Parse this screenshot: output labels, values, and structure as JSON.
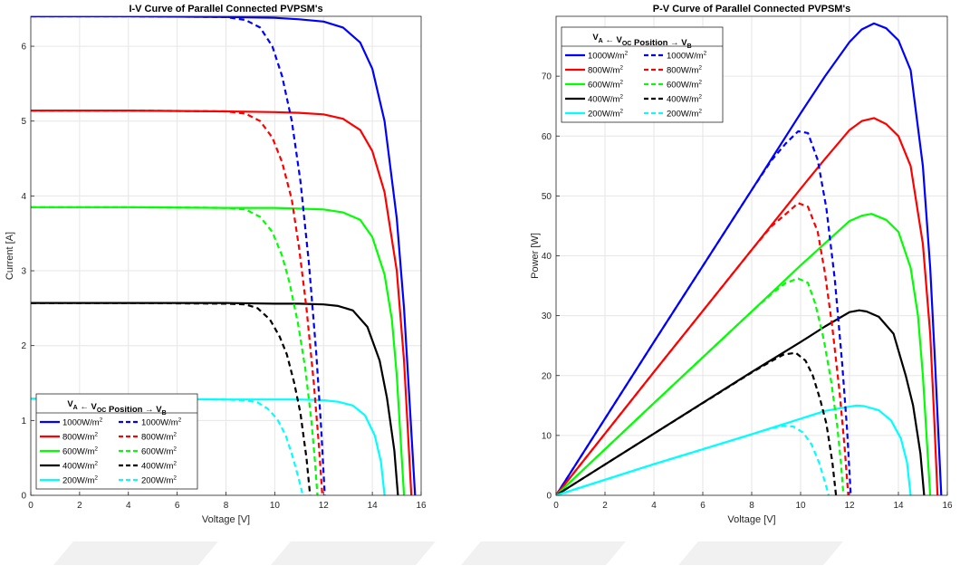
{
  "chart_data": [
    {
      "type": "line",
      "title": "I-V Curve of Parallel Connected PVPSM's",
      "xlabel": "Voltage [V]",
      "ylabel": "Current [A]",
      "xlim": [
        0,
        16
      ],
      "ylim": [
        0,
        6.4
      ],
      "xticks": [
        "0",
        "2",
        "4",
        "6",
        "8",
        "10",
        "12",
        "14",
        "16"
      ],
      "yticks": [
        "0",
        "1",
        "2",
        "3",
        "4",
        "5",
        "6"
      ],
      "grid": true,
      "legend_position": "bottom-left",
      "legend_header": {
        "left": "V",
        "left_sub": "A",
        "arrow_left": "←",
        "mid": "V",
        "mid_sub": "OC",
        "mid_rest": " Position",
        "arrow_right": "→",
        "right": "V",
        "right_sub": "B"
      },
      "series": [
        {
          "label": "1000W/m",
          "style": "solid",
          "color": "#0000ff",
          "x": [
            0,
            4,
            8,
            10,
            11,
            12,
            12.8,
            13.5,
            14,
            14.5,
            15,
            15.3,
            15.5,
            15.75
          ],
          "y": [
            6.4,
            6.4,
            6.39,
            6.38,
            6.36,
            6.33,
            6.25,
            6.05,
            5.7,
            5.0,
            3.7,
            2.5,
            1.4,
            0
          ]
        },
        {
          "label": "800W/m",
          "style": "solid",
          "color": "#ff0000",
          "x": [
            0,
            4,
            8,
            10,
            11,
            12,
            12.8,
            13.5,
            14,
            14.5,
            15,
            15.3,
            15.45,
            15.6
          ],
          "y": [
            5.14,
            5.14,
            5.13,
            5.12,
            5.11,
            5.09,
            5.03,
            4.88,
            4.6,
            4.05,
            3.0,
            1.8,
            0.9,
            0
          ]
        },
        {
          "label": "600W/m",
          "style": "solid",
          "color": "#00ff00",
          "x": [
            0,
            4,
            8,
            10,
            11,
            12,
            12.8,
            13.5,
            14,
            14.5,
            14.8,
            15.0,
            15.3
          ],
          "y": [
            3.85,
            3.85,
            3.84,
            3.84,
            3.83,
            3.82,
            3.78,
            3.68,
            3.45,
            2.95,
            2.35,
            1.6,
            0
          ]
        },
        {
          "label": "400W/m",
          "style": "solid",
          "color": "#000000",
          "x": [
            0,
            4,
            8,
            10,
            11,
            12,
            12.6,
            13.2,
            13.8,
            14.3,
            14.6,
            14.9,
            15.05
          ],
          "y": [
            2.57,
            2.57,
            2.57,
            2.56,
            2.56,
            2.55,
            2.53,
            2.47,
            2.25,
            1.8,
            1.3,
            0.6,
            0
          ]
        },
        {
          "label": "200W/m",
          "style": "solid",
          "color": "#00ffff",
          "x": [
            0,
            4,
            8,
            10,
            11,
            12,
            12.6,
            13.2,
            13.7,
            14.1,
            14.35,
            14.5
          ],
          "y": [
            1.29,
            1.29,
            1.28,
            1.28,
            1.28,
            1.27,
            1.25,
            1.2,
            1.07,
            0.8,
            0.45,
            0
          ]
        },
        {
          "label": "1000W/m",
          "style": "dashed",
          "color": "#0000ff",
          "x": [
            0,
            4,
            8,
            8.8,
            9.4,
            9.9,
            10.3,
            10.7,
            11.05,
            11.4,
            11.7,
            11.9,
            12.05
          ],
          "y": [
            6.4,
            6.4,
            6.39,
            6.35,
            6.25,
            6.0,
            5.6,
            5.0,
            4.2,
            3.1,
            1.9,
            0.9,
            0
          ]
        },
        {
          "label": "800W/m",
          "style": "dashed",
          "color": "#ff0000",
          "x": [
            0,
            4,
            8,
            8.8,
            9.4,
            9.9,
            10.3,
            10.7,
            11.0,
            11.3,
            11.6,
            11.8,
            11.95
          ],
          "y": [
            5.14,
            5.14,
            5.13,
            5.1,
            5.0,
            4.78,
            4.45,
            3.95,
            3.3,
            2.5,
            1.5,
            0.7,
            0
          ]
        },
        {
          "label": "600W/m",
          "style": "dashed",
          "color": "#00ff00",
          "x": [
            0,
            4,
            8,
            8.8,
            9.4,
            9.9,
            10.3,
            10.6,
            10.95,
            11.25,
            11.5,
            11.65,
            11.75
          ],
          "y": [
            3.85,
            3.85,
            3.84,
            3.82,
            3.72,
            3.52,
            3.2,
            2.85,
            2.3,
            1.7,
            1.0,
            0.45,
            0
          ]
        },
        {
          "label": "400W/m",
          "style": "dashed",
          "color": "#000000",
          "x": [
            0,
            4,
            8,
            8.8,
            9.3,
            9.8,
            10.2,
            10.5,
            10.8,
            11.05,
            11.3,
            11.45
          ],
          "y": [
            2.57,
            2.57,
            2.56,
            2.55,
            2.5,
            2.35,
            2.12,
            1.88,
            1.5,
            1.1,
            0.5,
            0
          ]
        },
        {
          "label": "200W/m",
          "style": "dashed",
          "color": "#00ffff",
          "x": [
            0,
            4,
            8,
            8.8,
            9.3,
            9.7,
            10.1,
            10.45,
            10.75,
            11.0,
            11.15
          ],
          "y": [
            1.29,
            1.29,
            1.28,
            1.27,
            1.24,
            1.16,
            1.02,
            0.8,
            0.5,
            0.2,
            0
          ]
        }
      ]
    },
    {
      "type": "line",
      "title": "P-V Curve of Parallel Connected PVPSM's",
      "xlabel": "Voltage [V]",
      "ylabel": "Power [W]",
      "xlim": [
        0,
        16
      ],
      "ylim": [
        0,
        80
      ],
      "xticks": [
        "0",
        "2",
        "4",
        "6",
        "8",
        "10",
        "12",
        "14",
        "16"
      ],
      "yticks": [
        "0",
        "10",
        "20",
        "30",
        "40",
        "50",
        "60",
        "70"
      ],
      "grid": true,
      "legend_position": "top-left",
      "legend_header": {
        "left": "V",
        "left_sub": "A",
        "arrow_left": "←",
        "mid": "V",
        "mid_sub": "OC",
        "mid_rest": " Position",
        "arrow_right": "→",
        "right": "V",
        "right_sub": "B"
      },
      "series": [
        {
          "label": "1000W/m",
          "style": "solid",
          "color": "#0000ff",
          "x": [
            0,
            4,
            8,
            10,
            11,
            12,
            12.5,
            13,
            13.5,
            14,
            14.5,
            15,
            15.3,
            15.5,
            15.75
          ],
          "y": [
            0,
            25.6,
            51,
            63.8,
            70,
            75.7,
            77.8,
            78.8,
            78,
            76,
            71,
            55,
            38,
            22,
            0
          ]
        },
        {
          "label": "800W/m",
          "style": "solid",
          "color": "#ff0000",
          "x": [
            0,
            4,
            8,
            10,
            11,
            12,
            12.5,
            13,
            13.5,
            14,
            14.5,
            15,
            15.3,
            15.45,
            15.6
          ],
          "y": [
            0,
            20.6,
            41,
            51.2,
            56.2,
            61,
            62.5,
            63,
            62,
            60,
            55,
            42,
            27,
            14,
            0
          ]
        },
        {
          "label": "600W/m",
          "style": "solid",
          "color": "#00ff00",
          "x": [
            0,
            4,
            8,
            10,
            11,
            12,
            12.5,
            12.9,
            13.5,
            14,
            14.5,
            14.8,
            15.0,
            15.3
          ],
          "y": [
            0,
            15.4,
            30.7,
            38.4,
            42.1,
            45.8,
            46.7,
            47,
            46,
            44,
            38,
            30,
            20,
            0
          ]
        },
        {
          "label": "400W/m",
          "style": "solid",
          "color": "#000000",
          "x": [
            0,
            4,
            8,
            10,
            11,
            12,
            12.4,
            12.7,
            13.2,
            13.8,
            14.3,
            14.6,
            14.9,
            15.05
          ],
          "y": [
            0,
            10.3,
            20.6,
            25.6,
            28.2,
            30.6,
            30.9,
            30.7,
            29.8,
            27,
            20,
            15,
            7,
            0
          ]
        },
        {
          "label": "200W/m",
          "style": "solid",
          "color": "#00ffff",
          "x": [
            0,
            4,
            8,
            10,
            11,
            12,
            12.3,
            12.6,
            13.2,
            13.7,
            14.1,
            14.35,
            14.5
          ],
          "y": [
            0,
            5.2,
            10.2,
            12.8,
            14.1,
            14.8,
            15.0,
            14.9,
            14.2,
            12.5,
            9.5,
            5.5,
            0
          ]
        },
        {
          "label": "1000W/m",
          "style": "dashed",
          "color": "#0000ff",
          "x": [
            0,
            4,
            8,
            8.8,
            9.4,
            9.9,
            10.3,
            10.7,
            11.05,
            11.4,
            11.7,
            11.9,
            12.05
          ],
          "y": [
            0,
            25.6,
            51,
            55.9,
            58.8,
            60.8,
            60.5,
            56,
            48,
            36,
            22,
            11,
            0
          ]
        },
        {
          "label": "800W/m",
          "style": "dashed",
          "color": "#ff0000",
          "x": [
            0,
            4,
            8,
            8.8,
            9.4,
            9.9,
            10.3,
            10.7,
            11.0,
            11.3,
            11.6,
            11.8,
            11.95
          ],
          "y": [
            0,
            20.6,
            41,
            44.9,
            47,
            48.8,
            48.2,
            44,
            37,
            28,
            17,
            8,
            0
          ]
        },
        {
          "label": "600W/m",
          "style": "dashed",
          "color": "#00ff00",
          "x": [
            0,
            4,
            8,
            8.8,
            9.4,
            9.9,
            10.3,
            10.6,
            10.95,
            11.25,
            11.5,
            11.65,
            11.75
          ],
          "y": [
            0,
            15.4,
            30.7,
            33.6,
            35.5,
            36.2,
            35.5,
            32,
            26,
            19,
            11.5,
            5.5,
            0
          ]
        },
        {
          "label": "400W/m",
          "style": "dashed",
          "color": "#000000",
          "x": [
            0,
            4,
            8,
            8.8,
            9.3,
            9.8,
            10.2,
            10.5,
            10.8,
            11.05,
            11.3,
            11.45
          ],
          "y": [
            0,
            10.3,
            20.5,
            22.4,
            23.5,
            23.8,
            22.5,
            20,
            16,
            12,
            5.5,
            0
          ]
        },
        {
          "label": "200W/m",
          "style": "dashed",
          "color": "#00ffff",
          "x": [
            0,
            4,
            8,
            8.8,
            9.3,
            9.7,
            10.1,
            10.45,
            10.75,
            11.0,
            11.15
          ],
          "y": [
            0,
            5.2,
            10.2,
            11.2,
            11.6,
            11.5,
            10.5,
            8.5,
            5.5,
            2.2,
            0
          ]
        }
      ]
    }
  ]
}
